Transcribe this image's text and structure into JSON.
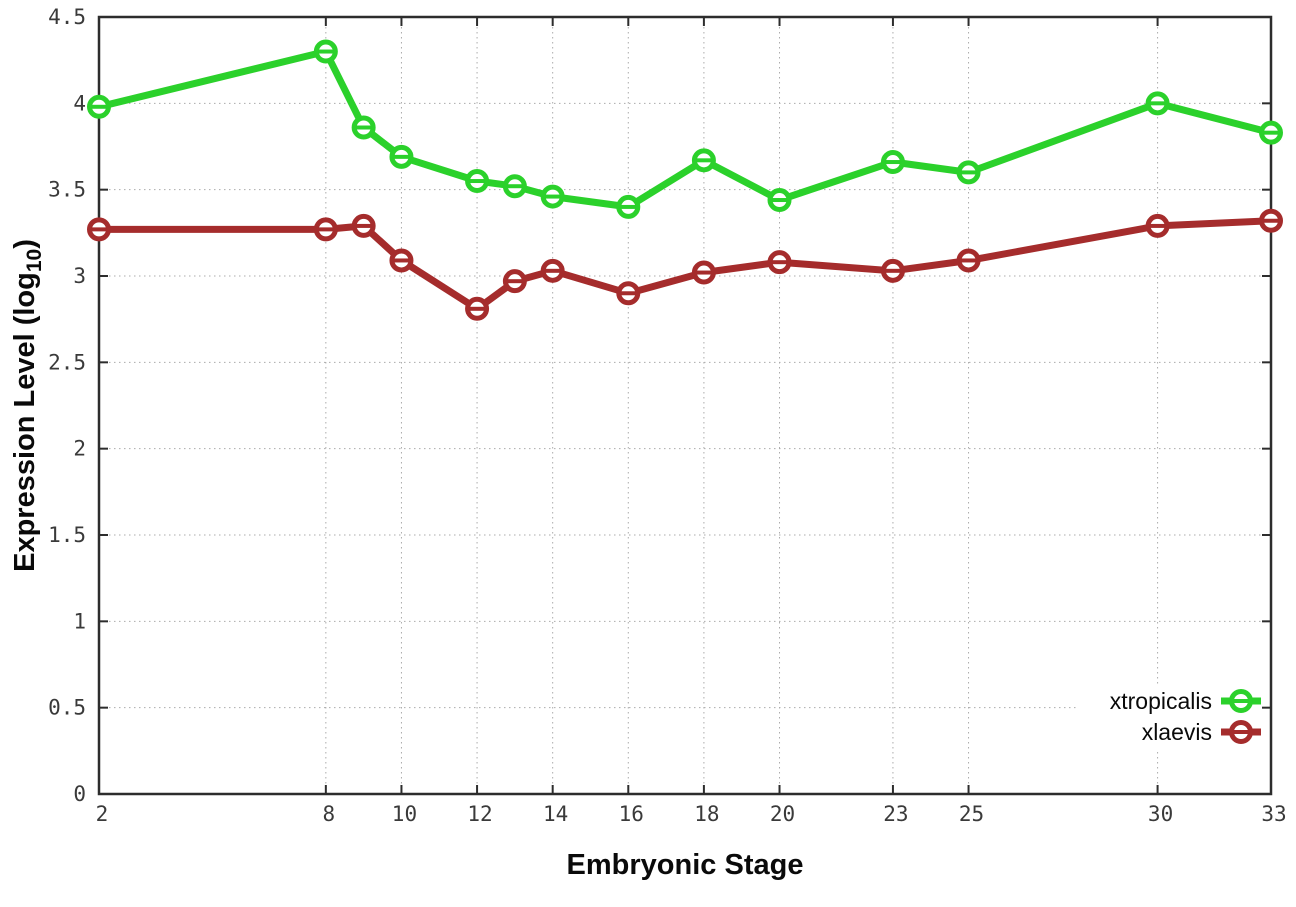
{
  "chart_data": {
    "type": "line",
    "title": "",
    "xlabel": "Embryonic Stage",
    "ylabel": "Expression Level (log10)",
    "ylabel_parts": {
      "prefix": "Expression Level (log",
      "subscript": "10",
      "suffix": ")"
    },
    "xlim": [
      2,
      33
    ],
    "ylim": [
      0,
      4.5
    ],
    "x_ticks": [
      2,
      8,
      10,
      12,
      14,
      16,
      18,
      20,
      23,
      25,
      30,
      33
    ],
    "y_ticks": [
      0,
      0.5,
      1,
      1.5,
      2,
      2.5,
      3,
      3.5,
      4,
      4.5
    ],
    "grid": true,
    "legend_position": "bottom-right",
    "marker": "open-circle-with-errorbar",
    "x": [
      2,
      8,
      9,
      10,
      12,
      13,
      14,
      16,
      18,
      20,
      23,
      25,
      30,
      33
    ],
    "series": [
      {
        "name": "xtropicalis",
        "color": "#2bd12b",
        "values": [
          3.98,
          4.3,
          3.86,
          3.69,
          3.55,
          3.52,
          3.46,
          3.4,
          3.67,
          3.44,
          3.66,
          3.6,
          4.0,
          3.83
        ]
      },
      {
        "name": "xlaevis",
        "color": "#a52c2c",
        "values": [
          3.27,
          3.27,
          3.29,
          3.09,
          2.81,
          2.97,
          3.03,
          2.9,
          3.02,
          3.08,
          3.03,
          3.09,
          3.29,
          3.32
        ]
      }
    ],
    "colors": {
      "frame": "#2d2d2d",
      "grid": "#ababab",
      "tick_text": "#3a3a3a",
      "label_text": "#0a0a0a",
      "background": "#ffffff"
    }
  }
}
